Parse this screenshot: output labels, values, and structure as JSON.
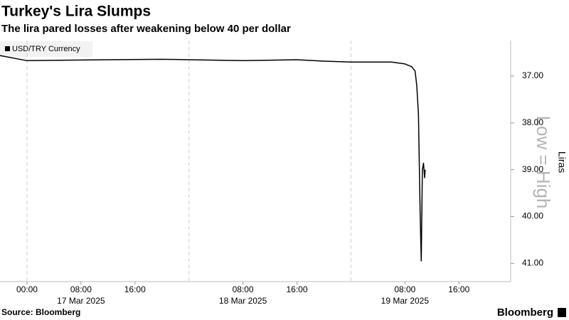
{
  "chart_data": {
    "type": "line",
    "title": "Turkey's Lira Slumps",
    "subtitle": "The lira pared losses after weakening below 40 per dollar",
    "source": "Source: Bloomberg",
    "brand": "Bloomberg",
    "y_axis_label": "Liras",
    "invert_note": "Low = High",
    "inverted": true,
    "x": [
      "2025-03-16T20:00",
      "2025-03-17T00:00",
      "2025-03-17T12:00",
      "2025-03-17T20:00",
      "2025-03-18T00:00",
      "2025-03-18T08:00",
      "2025-03-18T16:00",
      "2025-03-18T20:00",
      "2025-03-19T00:00",
      "2025-03-19T06:00",
      "2025-03-19T08:00",
      "2025-03-19T09:00",
      "2025-03-19T09:30",
      "2025-03-19T09:45",
      "2025-03-19T10:00",
      "2025-03-19T10:15",
      "2025-03-19T10:25",
      "2025-03-19T10:35",
      "2025-03-19T10:45",
      "2025-03-19T10:55",
      "2025-03-19T11:00"
    ],
    "series": [
      {
        "name": "USD/TRY Currency",
        "color": "#000000",
        "values": [
          36.56,
          36.67,
          36.65,
          36.64,
          36.65,
          36.67,
          36.65,
          36.68,
          36.7,
          36.7,
          36.74,
          36.8,
          36.89,
          37.2,
          37.8,
          39.92,
          40.95,
          39.0,
          38.86,
          39.17,
          39.0
        ]
      }
    ],
    "xlim": [
      "2025-03-16T20:00",
      "2025-03-19T23:40"
    ],
    "xticks": [
      {
        "value": "2025-03-17T00:00",
        "label": "00:00"
      },
      {
        "value": "2025-03-17T08:00",
        "label": "08:00"
      },
      {
        "value": "2025-03-17T16:00",
        "label": "16:00"
      },
      {
        "value": "2025-03-18T08:00",
        "label": "08:00"
      },
      {
        "value": "2025-03-18T16:00",
        "label": "16:00"
      },
      {
        "value": "2025-03-19T08:00",
        "label": "08:00"
      },
      {
        "value": "2025-03-19T16:00",
        "label": "16:00"
      }
    ],
    "date_labels": [
      {
        "value": "2025-03-17T08:00",
        "label": "17 Mar 2025"
      },
      {
        "value": "2025-03-18T08:00",
        "label": "18 Mar 2025"
      },
      {
        "value": "2025-03-19T08:00",
        "label": "19 Mar 2025"
      }
    ],
    "day_lines": [
      "2025-03-17T00:00",
      "2025-03-18T00:00",
      "2025-03-19T00:00"
    ],
    "ylim": [
      36.24,
      41.39
    ],
    "yticks": [
      {
        "value": 37,
        "label": "37.00"
      },
      {
        "value": 38,
        "label": "38.00"
      },
      {
        "value": 39,
        "label": "39.00"
      },
      {
        "value": 40,
        "label": "40.00"
      },
      {
        "value": 41,
        "label": "41.00"
      }
    ]
  }
}
